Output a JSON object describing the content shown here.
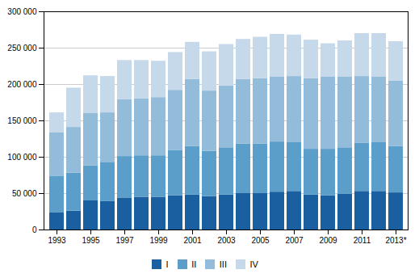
{
  "chart_data": {
    "type": "bar",
    "stacked": true,
    "grid": true,
    "legend": "bottom",
    "categories": [
      "1993",
      null,
      "1995",
      null,
      "1997",
      null,
      "1999",
      null,
      "2001",
      null,
      "2003",
      null,
      "2005",
      null,
      "2007",
      null,
      "2009",
      null,
      "2011",
      null,
      "2013*"
    ],
    "series": [
      {
        "name": "I",
        "color": "#1a5fa0",
        "values": [
          24000,
          26000,
          40000,
          39000,
          44000,
          45000,
          45000,
          47000,
          48000,
          46000,
          48000,
          50000,
          50000,
          52000,
          53000,
          48000,
          47000,
          49000,
          53000,
          53000,
          51000
        ]
      },
      {
        "name": "II",
        "color": "#5b9ec9",
        "values": [
          50000,
          52000,
          48000,
          54000,
          57000,
          57000,
          57000,
          62000,
          67000,
          62000,
          65000,
          68000,
          68000,
          69000,
          67000,
          63000,
          64000,
          64000,
          66000,
          67000,
          64000
        ]
      },
      {
        "name": "III",
        "color": "#92bcd9",
        "values": [
          60000,
          63000,
          72000,
          68000,
          78000,
          78000,
          80000,
          83000,
          92000,
          83000,
          85000,
          89000,
          90000,
          89000,
          91000,
          97000,
          99000,
          97000,
          92000,
          90000,
          90000
        ]
      },
      {
        "name": "IV",
        "color": "#c5d9ea",
        "values": [
          27000,
          54000,
          52000,
          50000,
          54000,
          53000,
          50000,
          52000,
          51000,
          54000,
          57000,
          55000,
          57000,
          59000,
          57000,
          53000,
          46000,
          50000,
          59000,
          60000,
          54000
        ]
      }
    ],
    "ylim": [
      0,
      300000
    ],
    "yticks": [
      0,
      {
        "value": 50000,
        "label": "50 000"
      },
      {
        "value": 100000,
        "label": "100 000"
      },
      {
        "value": 150000,
        "label": "150 000"
      },
      {
        "value": 200000,
        "label": "200 000"
      },
      {
        "value": 250000,
        "label": "250 000"
      },
      {
        "value": 300000,
        "label": "300 000"
      }
    ]
  }
}
